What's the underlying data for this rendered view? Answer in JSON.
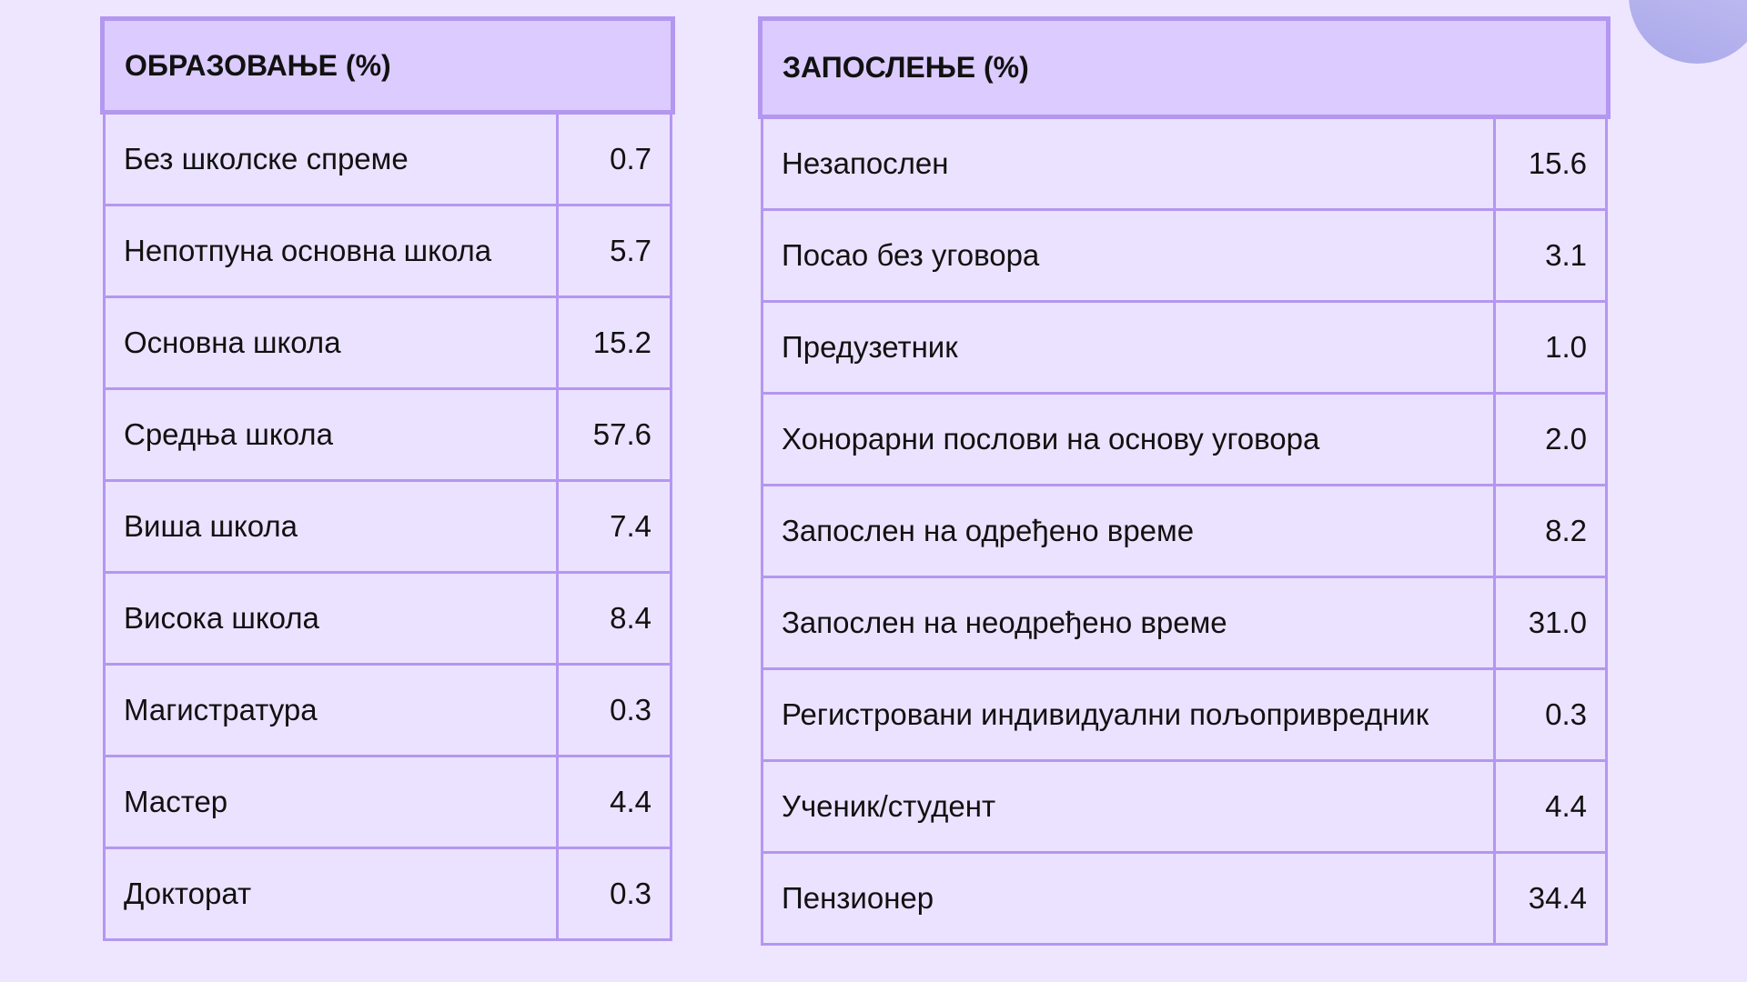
{
  "tables": [
    {
      "title": "ОБРАЗОВАЊЕ (%)",
      "rows": [
        [
          "Без школске спреме",
          "0.7"
        ],
        [
          "Непотпуна основна школа",
          "5.7"
        ],
        [
          "Основна школа",
          "15.2"
        ],
        [
          "Средња школа",
          "57.6"
        ],
        [
          "Виша школа",
          "7.4"
        ],
        [
          "Висока школа",
          "8.4"
        ],
        [
          "Магистратура",
          "0.3"
        ],
        [
          "Мастер",
          "4.4"
        ],
        [
          "Докторат",
          "0.3"
        ]
      ]
    },
    {
      "title": "ЗАПОСЛЕЊЕ (%)",
      "rows": [
        [
          "Незапослен",
          "15.6"
        ],
        [
          "Посао без уговора",
          "3.1"
        ],
        [
          "Предузетник",
          "1.0"
        ],
        [
          "Хонорарни послови на основу уговора",
          "2.0"
        ],
        [
          "Запослен на одређено време",
          "8.2"
        ],
        [
          "Запослен на неодређено време",
          "31.0"
        ],
        [
          "Регистровани индивидуални пољопривредник",
          "0.3"
        ],
        [
          "Ученик/студент",
          "4.4"
        ],
        [
          "Пензионер",
          "34.4"
        ]
      ]
    }
  ]
}
